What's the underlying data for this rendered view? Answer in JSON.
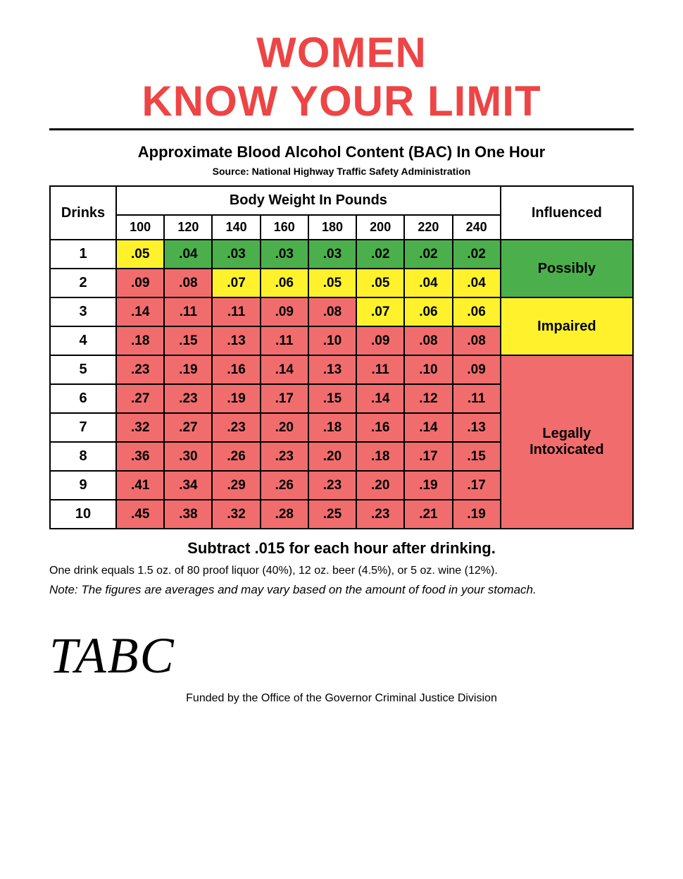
{
  "title": {
    "line1": "WOMEN",
    "line2": "KNOW YOUR LIMIT",
    "color": "#ed4545",
    "fontsize": 60
  },
  "subtitle": "Approximate Blood Alcohol Content (BAC) In One Hour",
  "subtitle_fontsize": 22,
  "source": "Source: National Highway Traffic Safety Administration",
  "headers": {
    "drinks": "Drinks",
    "weight": "Body Weight In Pounds",
    "influenced": "Influenced"
  },
  "weights": [
    "100",
    "120",
    "140",
    "160",
    "180",
    "200",
    "220",
    "240"
  ],
  "colors": {
    "green": "#4bb04b",
    "yellow": "#fff22d",
    "red": "#f16d6d",
    "white": "#ffffff",
    "border": "#000000"
  },
  "legend": [
    {
      "label": "Possibly",
      "color": "green",
      "rowspan": 2
    },
    {
      "label": "Impaired",
      "color": "yellow",
      "rowspan": 2
    },
    {
      "label": "Legally Intoxicated",
      "color": "red",
      "rowspan": 6
    }
  ],
  "rows": [
    {
      "drinks": "1",
      "cells": [
        {
          "v": ".05",
          "c": "yellow"
        },
        {
          "v": ".04",
          "c": "green"
        },
        {
          "v": ".03",
          "c": "green"
        },
        {
          "v": ".03",
          "c": "green"
        },
        {
          "v": ".03",
          "c": "green"
        },
        {
          "v": ".02",
          "c": "green"
        },
        {
          "v": ".02",
          "c": "green"
        },
        {
          "v": ".02",
          "c": "green"
        }
      ],
      "legend": 0
    },
    {
      "drinks": "2",
      "cells": [
        {
          "v": ".09",
          "c": "red"
        },
        {
          "v": ".08",
          "c": "red"
        },
        {
          "v": ".07",
          "c": "yellow"
        },
        {
          "v": ".06",
          "c": "yellow"
        },
        {
          "v": ".05",
          "c": "yellow"
        },
        {
          "v": ".05",
          "c": "yellow"
        },
        {
          "v": ".04",
          "c": "yellow"
        },
        {
          "v": ".04",
          "c": "yellow"
        }
      ]
    },
    {
      "drinks": "3",
      "cells": [
        {
          "v": ".14",
          "c": "red"
        },
        {
          "v": ".11",
          "c": "red"
        },
        {
          "v": ".11",
          "c": "red"
        },
        {
          "v": ".09",
          "c": "red"
        },
        {
          "v": ".08",
          "c": "red"
        },
        {
          "v": ".07",
          "c": "yellow"
        },
        {
          "v": ".06",
          "c": "yellow"
        },
        {
          "v": ".06",
          "c": "yellow"
        }
      ],
      "legend": 1
    },
    {
      "drinks": "4",
      "cells": [
        {
          "v": ".18",
          "c": "red"
        },
        {
          "v": ".15",
          "c": "red"
        },
        {
          "v": ".13",
          "c": "red"
        },
        {
          "v": ".11",
          "c": "red"
        },
        {
          "v": ".10",
          "c": "red"
        },
        {
          "v": ".09",
          "c": "red"
        },
        {
          "v": ".08",
          "c": "red"
        },
        {
          "v": ".08",
          "c": "red"
        }
      ]
    },
    {
      "drinks": "5",
      "cells": [
        {
          "v": ".23",
          "c": "red"
        },
        {
          "v": ".19",
          "c": "red"
        },
        {
          "v": ".16",
          "c": "red"
        },
        {
          "v": ".14",
          "c": "red"
        },
        {
          "v": ".13",
          "c": "red"
        },
        {
          "v": ".11",
          "c": "red"
        },
        {
          "v": ".10",
          "c": "red"
        },
        {
          "v": ".09",
          "c": "red"
        }
      ],
      "legend": 2
    },
    {
      "drinks": "6",
      "cells": [
        {
          "v": ".27",
          "c": "red"
        },
        {
          "v": ".23",
          "c": "red"
        },
        {
          "v": ".19",
          "c": "red"
        },
        {
          "v": ".17",
          "c": "red"
        },
        {
          "v": ".15",
          "c": "red"
        },
        {
          "v": ".14",
          "c": "red"
        },
        {
          "v": ".12",
          "c": "red"
        },
        {
          "v": ".11",
          "c": "red"
        }
      ]
    },
    {
      "drinks": "7",
      "cells": [
        {
          "v": ".32",
          "c": "red"
        },
        {
          "v": ".27",
          "c": "red"
        },
        {
          "v": ".23",
          "c": "red"
        },
        {
          "v": ".20",
          "c": "red"
        },
        {
          "v": ".18",
          "c": "red"
        },
        {
          "v": ".16",
          "c": "red"
        },
        {
          "v": ".14",
          "c": "red"
        },
        {
          "v": ".13",
          "c": "red"
        }
      ]
    },
    {
      "drinks": "8",
      "cells": [
        {
          "v": ".36",
          "c": "red"
        },
        {
          "v": ".30",
          "c": "red"
        },
        {
          "v": ".26",
          "c": "red"
        },
        {
          "v": ".23",
          "c": "red"
        },
        {
          "v": ".20",
          "c": "red"
        },
        {
          "v": ".18",
          "c": "red"
        },
        {
          "v": ".17",
          "c": "red"
        },
        {
          "v": ".15",
          "c": "red"
        }
      ]
    },
    {
      "drinks": "9",
      "cells": [
        {
          "v": ".41",
          "c": "red"
        },
        {
          "v": ".34",
          "c": "red"
        },
        {
          "v": ".29",
          "c": "red"
        },
        {
          "v": ".26",
          "c": "red"
        },
        {
          "v": ".23",
          "c": "red"
        },
        {
          "v": ".20",
          "c": "red"
        },
        {
          "v": ".19",
          "c": "red"
        },
        {
          "v": ".17",
          "c": "red"
        }
      ]
    },
    {
      "drinks": "10",
      "cells": [
        {
          "v": ".45",
          "c": "red"
        },
        {
          "v": ".38",
          "c": "red"
        },
        {
          "v": ".32",
          "c": "red"
        },
        {
          "v": ".28",
          "c": "red"
        },
        {
          "v": ".25",
          "c": "red"
        },
        {
          "v": ".23",
          "c": "red"
        },
        {
          "v": ".21",
          "c": "red"
        },
        {
          "v": ".19",
          "c": "red"
        }
      ]
    }
  ],
  "instruction": "Subtract .015 for each hour after drinking.",
  "definition": "One drink equals 1.5 oz. of 80 proof liquor (40%), 12 oz. beer (4.5%), or 5 oz. wine (12%).",
  "note": "Note: The figures are averages and may vary based on the amount of food in your stomach.",
  "logo": "TABC",
  "funded": "Funded by the Office of the Governor Criminal Justice Division"
}
